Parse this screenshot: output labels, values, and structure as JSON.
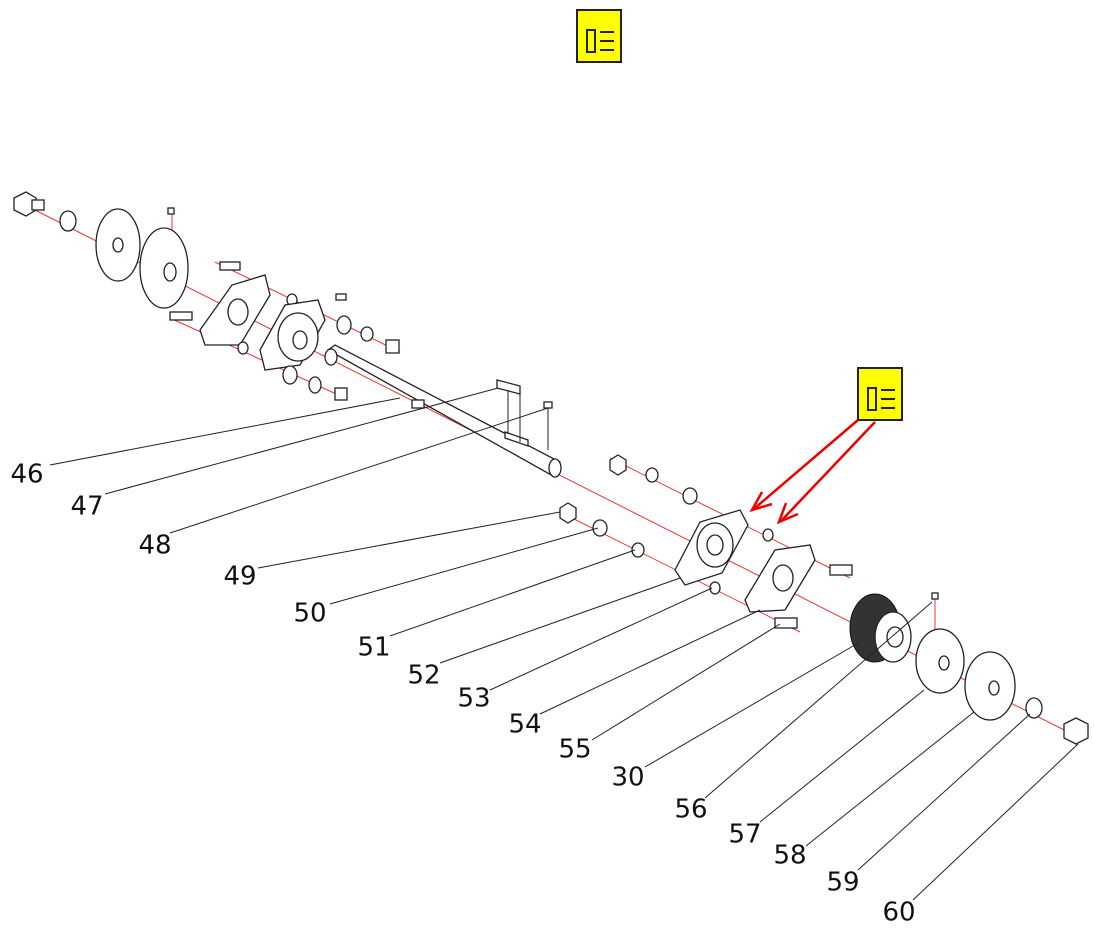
{
  "labels": [
    "46",
    "47",
    "48",
    "49",
    "50",
    "51",
    "52",
    "53",
    "54",
    "55",
    "30",
    "56",
    "57",
    "58",
    "59",
    "60"
  ]
}
